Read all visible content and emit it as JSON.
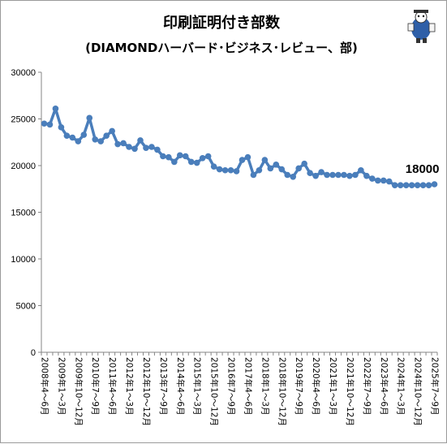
{
  "chart_data": {
    "type": "line",
    "title": "印刷証明付き部数",
    "subtitle": "(DIAMONDハーバード･ビジネス･レビュー、部)",
    "ylim": [
      0,
      30000
    ],
    "yticks": [
      "0",
      "5000",
      "10000",
      "15000",
      "20000",
      "25000",
      "30000"
    ],
    "grid": false,
    "legend": "none",
    "color": "#4a7ebb",
    "categories": [
      "2008年4～6月",
      "2008年7～9月",
      "2008年10～12月",
      "2009年1～3月",
      "2009年4～6月",
      "2009年7～9月",
      "2009年10～12月",
      "2010年1～3月",
      "2010年4～6月",
      "2010年7～9月",
      "2010年10～12月",
      "2011年1～3月",
      "2011年4～6月",
      "2011年7～9月",
      "2011年10～12月",
      "2012年1～3月",
      "2012年4～6月",
      "2012年7～9月",
      "2012年10～12月",
      "2013年1～3月",
      "2013年4～6月",
      "2013年7～9月",
      "2013年10～12月",
      "2014年1～3月",
      "2014年4～6月",
      "2014年7～9月",
      "2014年10～12月",
      "2015年1～3月",
      "2015年4～6月",
      "2015年7～9月",
      "2015年10～12月",
      "2016年1～3月",
      "2016年4～6月",
      "2016年7～9月",
      "2016年10～12月",
      "2017年1～3月",
      "2017年4～6月",
      "2017年7～9月",
      "2017年10～12月",
      "2018年1～3月",
      "2018年4～6月",
      "2018年7～9月",
      "2018年10～12月",
      "2019年1～3月",
      "2019年4～6月",
      "2019年7～9月",
      "2019年10～12月",
      "2020年1～3月",
      "2020年4～6月",
      "2020年7～9月",
      "2020年10～12月",
      "2021年1～3月",
      "2021年4～6月",
      "2021年7～9月",
      "2021年10～12月",
      "2022年1～3月",
      "2022年4～6月",
      "2022年7～9月",
      "2022年10～12月",
      "2023年1～3月",
      "2023年4～6月",
      "2023年7～9月",
      "2023年10～12月",
      "2024年1～3月",
      "2024年4～6月",
      "2024年7～9月",
      "2024年10～12月",
      "2025年1～3月",
      "2025年4～6月",
      "2025年7～9月"
    ],
    "xtick_labels": [
      "2008年4～6月",
      "2009年1～3月",
      "2009年10～12月",
      "2010年7～9月",
      "2011年4～6月",
      "2012年1～3月",
      "2012年10～12月",
      "2013年7～9月",
      "2014年4～6月",
      "2015年1～3月",
      "2015年10～12月",
      "2016年7～9月",
      "2017年4～6月",
      "2018年1～3月",
      "2018年10～12月",
      "2019年7～9月",
      "2020年4～6月",
      "2021年1～3月",
      "2021年10～12月",
      "2022年7～9月",
      "2023年4～6月",
      "2024年1～3月",
      "2024年10～12月",
      "2025年7～9月"
    ],
    "values": [
      24500,
      24400,
      26100,
      24100,
      23200,
      23000,
      22600,
      23300,
      25100,
      22800,
      22600,
      23200,
      23700,
      22300,
      22400,
      22000,
      21800,
      22700,
      21900,
      22000,
      21700,
      21000,
      20900,
      20400,
      21100,
      21000,
      20400,
      20300,
      20800,
      21000,
      19900,
      19600,
      19500,
      19500,
      19400,
      20600,
      20900,
      19000,
      19500,
      20600,
      19700,
      20100,
      19600,
      19000,
      18800,
      19700,
      20200,
      19200,
      18900,
      19300,
      19000,
      19000,
      19000,
      19000,
      18900,
      19000,
      19500,
      18900,
      18600,
      18400,
      18400,
      18300,
      17900,
      17900,
      17900,
      17900,
      17900,
      17900,
      17900,
      18000
    ],
    "annotations": [
      {
        "index": 69,
        "text": "18000"
      }
    ]
  },
  "logo": {
    "name": "mascot-logo"
  }
}
